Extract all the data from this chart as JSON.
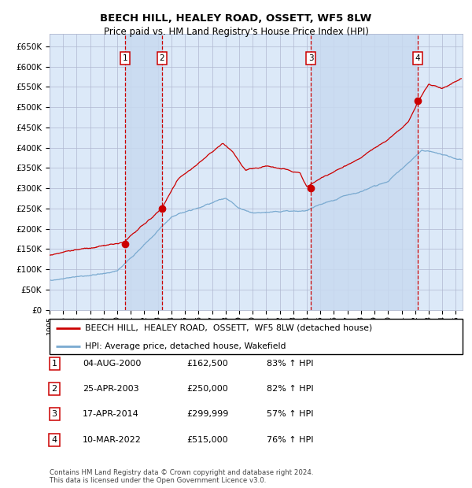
{
  "title": "BEECH HILL, HEALEY ROAD, OSSETT, WF5 8LW",
  "subtitle": "Price paid vs. HM Land Registry's House Price Index (HPI)",
  "plot_bg_color": "#dce9f8",
  "grid_color": "#b0b8d0",
  "ylim": [
    0,
    680000
  ],
  "yticks": [
    0,
    50000,
    100000,
    150000,
    200000,
    250000,
    300000,
    350000,
    400000,
    450000,
    500000,
    550000,
    600000,
    650000
  ],
  "ytick_labels": [
    "£0",
    "£50K",
    "£100K",
    "£150K",
    "£200K",
    "£250K",
    "£300K",
    "£350K",
    "£400K",
    "£450K",
    "£500K",
    "£550K",
    "£600K",
    "£650K"
  ],
  "xlim": [
    1995,
    2025.5
  ],
  "sale_dates_num": [
    2000.58,
    2003.31,
    2014.29,
    2022.18
  ],
  "sale_prices": [
    162500,
    250000,
    299999,
    515000
  ],
  "sale_labels": [
    "1",
    "2",
    "3",
    "4"
  ],
  "legend_line1": "BEECH HILL,  HEALEY ROAD,  OSSETT,  WF5 8LW (detached house)",
  "legend_line2": "HPI: Average price, detached house, Wakefield",
  "table_data": [
    [
      "1",
      "04-AUG-2000",
      "£162,500",
      "83% ↑ HPI"
    ],
    [
      "2",
      "25-APR-2003",
      "£250,000",
      "82% ↑ HPI"
    ],
    [
      "3",
      "17-APR-2014",
      "£299,999",
      "57% ↑ HPI"
    ],
    [
      "4",
      "10-MAR-2022",
      "£515,000",
      "76% ↑ HPI"
    ]
  ],
  "footer": "Contains HM Land Registry data © Crown copyright and database right 2024.\nThis data is licensed under the Open Government Licence v3.0.",
  "red_line_color": "#cc0000",
  "blue_line_color": "#7aaad0",
  "sale_marker_color": "#cc0000",
  "vline_color": "#cc0000",
  "shade_color": "#c8daf0"
}
